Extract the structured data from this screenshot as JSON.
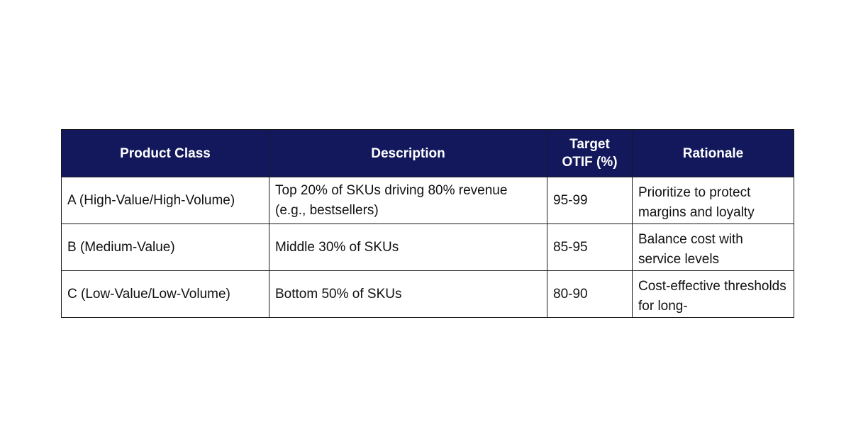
{
  "table": {
    "headers": {
      "product_class": "Product Class",
      "description": "Description",
      "target_otif": "Target OTIF (%)",
      "rationale": "Rationale"
    },
    "rows": [
      {
        "product_class": "A (High-Value/High-Volume)",
        "description": "Top 20% of SKUs driving 80% revenue (e.g., bestsellers)",
        "target_otif": "95-99",
        "rationale": "Prioritize to protect margins and loyalty"
      },
      {
        "product_class": "B (Medium-Value)",
        "description": "Middle 30% of SKUs",
        "target_otif": "85-95",
        "rationale": "Balance cost with service levels"
      },
      {
        "product_class": "C (Low-Value/Low-Volume)",
        "description": "Bottom 50% of SKUs",
        "target_otif": "80-90",
        "rationale": "Cost-effective thresholds for long-"
      }
    ]
  }
}
